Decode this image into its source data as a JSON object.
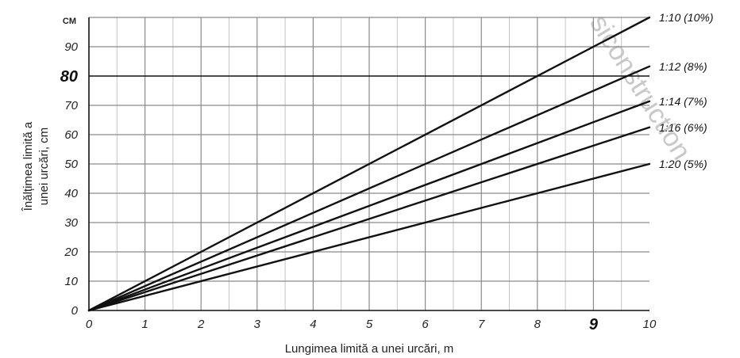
{
  "chart_data": {
    "type": "line",
    "xlabel": "Lungimea limită a unei urcări, m",
    "ylabel": "Înălțimea limită a unei urcări, cm",
    "y_unit_label": "CM",
    "xlim": [
      0,
      10
    ],
    "ylim": [
      0,
      100
    ],
    "x_ticks": [
      "0",
      "1",
      "2",
      "3",
      "4",
      "5",
      "6",
      "7",
      "8",
      "9",
      "10"
    ],
    "y_ticks": [
      "0",
      "10",
      "20",
      "30",
      "40",
      "50",
      "60",
      "70",
      "80",
      "90"
    ],
    "emphasized_x_tick": "9",
    "emphasized_y_tick": "80",
    "grid": true,
    "x": [
      0,
      10
    ],
    "series": [
      {
        "name": "1:10 (10%)",
        "values": [
          0,
          100
        ]
      },
      {
        "name": "1:12 (8%)",
        "values": [
          0,
          83.3
        ]
      },
      {
        "name": "1:14 (7%)",
        "values": [
          0,
          71.4
        ]
      },
      {
        "name": "1:16 (6%)",
        "values": [
          0,
          62.5
        ]
      },
      {
        "name": "1:20 (5%)",
        "values": [
          0,
          50
        ]
      }
    ],
    "watermark": "siconstruction"
  }
}
